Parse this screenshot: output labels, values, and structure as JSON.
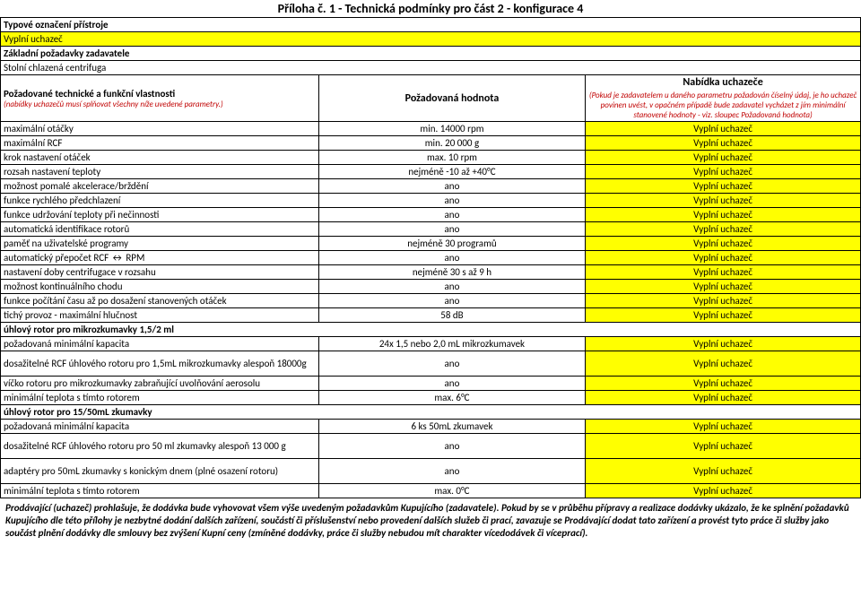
{
  "title": "Příloha č. 1 - Technická podmínky pro část 2 - konfigurace 4",
  "sectionA": {
    "label": "Typové označení přístroje",
    "fill": "Vyplní uchazeč"
  },
  "sectionB": {
    "label": "Základní požadavky zadavatele",
    "desc": "Stolní chlazená centrifuga"
  },
  "header": {
    "req_title": "Požadované technické a funkční vlastnosti",
    "req_note": "(nabídky uchazečů musí splňovat všechny níže uvedené parametry.)",
    "val_title": "Požadovaná hodnota",
    "offer_title": "Nabídka uchazeče",
    "offer_note": "(Pokud je zadavatelem u daného parametru požadován číselný údaj, je ho uchazeč povinen uvést, v opačném případě bude zadavatel vycházet z jím minimální stanovené hodnoty - viz. sloupec Požadovaná hodnota)"
  },
  "fill": "Vyplní uchazeč",
  "rows": [
    {
      "p": "maximální otáčky",
      "v": "min. 14000 rpm"
    },
    {
      "p": "maximální RCF",
      "v": "min. 20 000 g"
    },
    {
      "p": "krok nastavení otáček",
      "v": "max. 10 rpm"
    },
    {
      "p": "rozsah nastavení teploty",
      "v": "nejméně -10 až +40°C"
    },
    {
      "p": "možnost pomalé akcelerace/brždění",
      "v": "ano"
    },
    {
      "p": "funkce rychlého předchlazení",
      "v": "ano"
    },
    {
      "p": "funkce udržování teploty při nečinnosti",
      "v": "ano"
    },
    {
      "p": "automatická identifikace rotorů",
      "v": "ano"
    },
    {
      "p": "paměť na uživatelské programy",
      "v": "nejméně 30 programů"
    },
    {
      "p": "automatický přepočet RCF ↔ RPM",
      "v": "ano"
    },
    {
      "p": "nastavení doby centrifugace v rozsahu",
      "v": "nejméně 30 s až 9 h"
    },
    {
      "p": "možnost kontinuálního chodu",
      "v": "ano"
    },
    {
      "p": "funkce počítání času až po dosažení stanovených otáček",
      "v": "ano"
    },
    {
      "p": "tichý provoz - maximální hlučnost",
      "v": "58 dB"
    }
  ],
  "group1": {
    "title": "úhlový rotor pro mikrozkumavky 1,5/2 ml",
    "rows": [
      {
        "p": "požadovaná minimální kapacita",
        "v": "24x 1,5 nebo 2,0 mL mikrozkumavek"
      },
      {
        "p": "dosažitelné RCF úhlového rotoru pro 1,5mL mikrozkumavky alespoň 18000g",
        "v": "ano"
      },
      {
        "p": "víčko rotoru pro mikrozkumavky zabraňující uvolňování aerosolu",
        "v": "ano"
      },
      {
        "p": "minimální teplota s tímto rotorem",
        "v": "max. 6°C"
      }
    ]
  },
  "group2": {
    "title": "úhlový rotor pro 15/50mL zkumavky",
    "rows": [
      {
        "p": "požadovaná minimální kapacita",
        "v": "6 ks 50mL zkumavek"
      },
      {
        "p": "dosažitelné RCF úhlového rotoru pro 50 ml zkumavky alespoň 13 000 g",
        "v": "ano"
      },
      {
        "p": "adaptéry pro 50mL zkumavky s konickým dnem (plné osazení rotoru)",
        "v": "ano"
      },
      {
        "p": "minimální teplota s tímto rotorem",
        "v": "max. 0°C"
      }
    ]
  },
  "footer": "Prodávající (uchazeč) prohlašuje, že dodávka bude vyhovovat všem výše uvedeným požadavkům Kupujícího (zadavatele). Pokud by se v průběhu přípravy a realizace dodávky ukázalo, že ke splnění požadavků Kupujícího dle této přílohy je nezbytné dodání dalších zařízení, součástí či příslušenství nebo provedení dalších služeb či prací, zavazuje se Prodávající dodat tato zařízení a provést tyto práce či služby jako součást plnění dodávky dle smlouvy bez zvýšení Kupní ceny (zmíněné dodávky, práce či služby nebudou mít charakter vícedodávek či víceprací)."
}
